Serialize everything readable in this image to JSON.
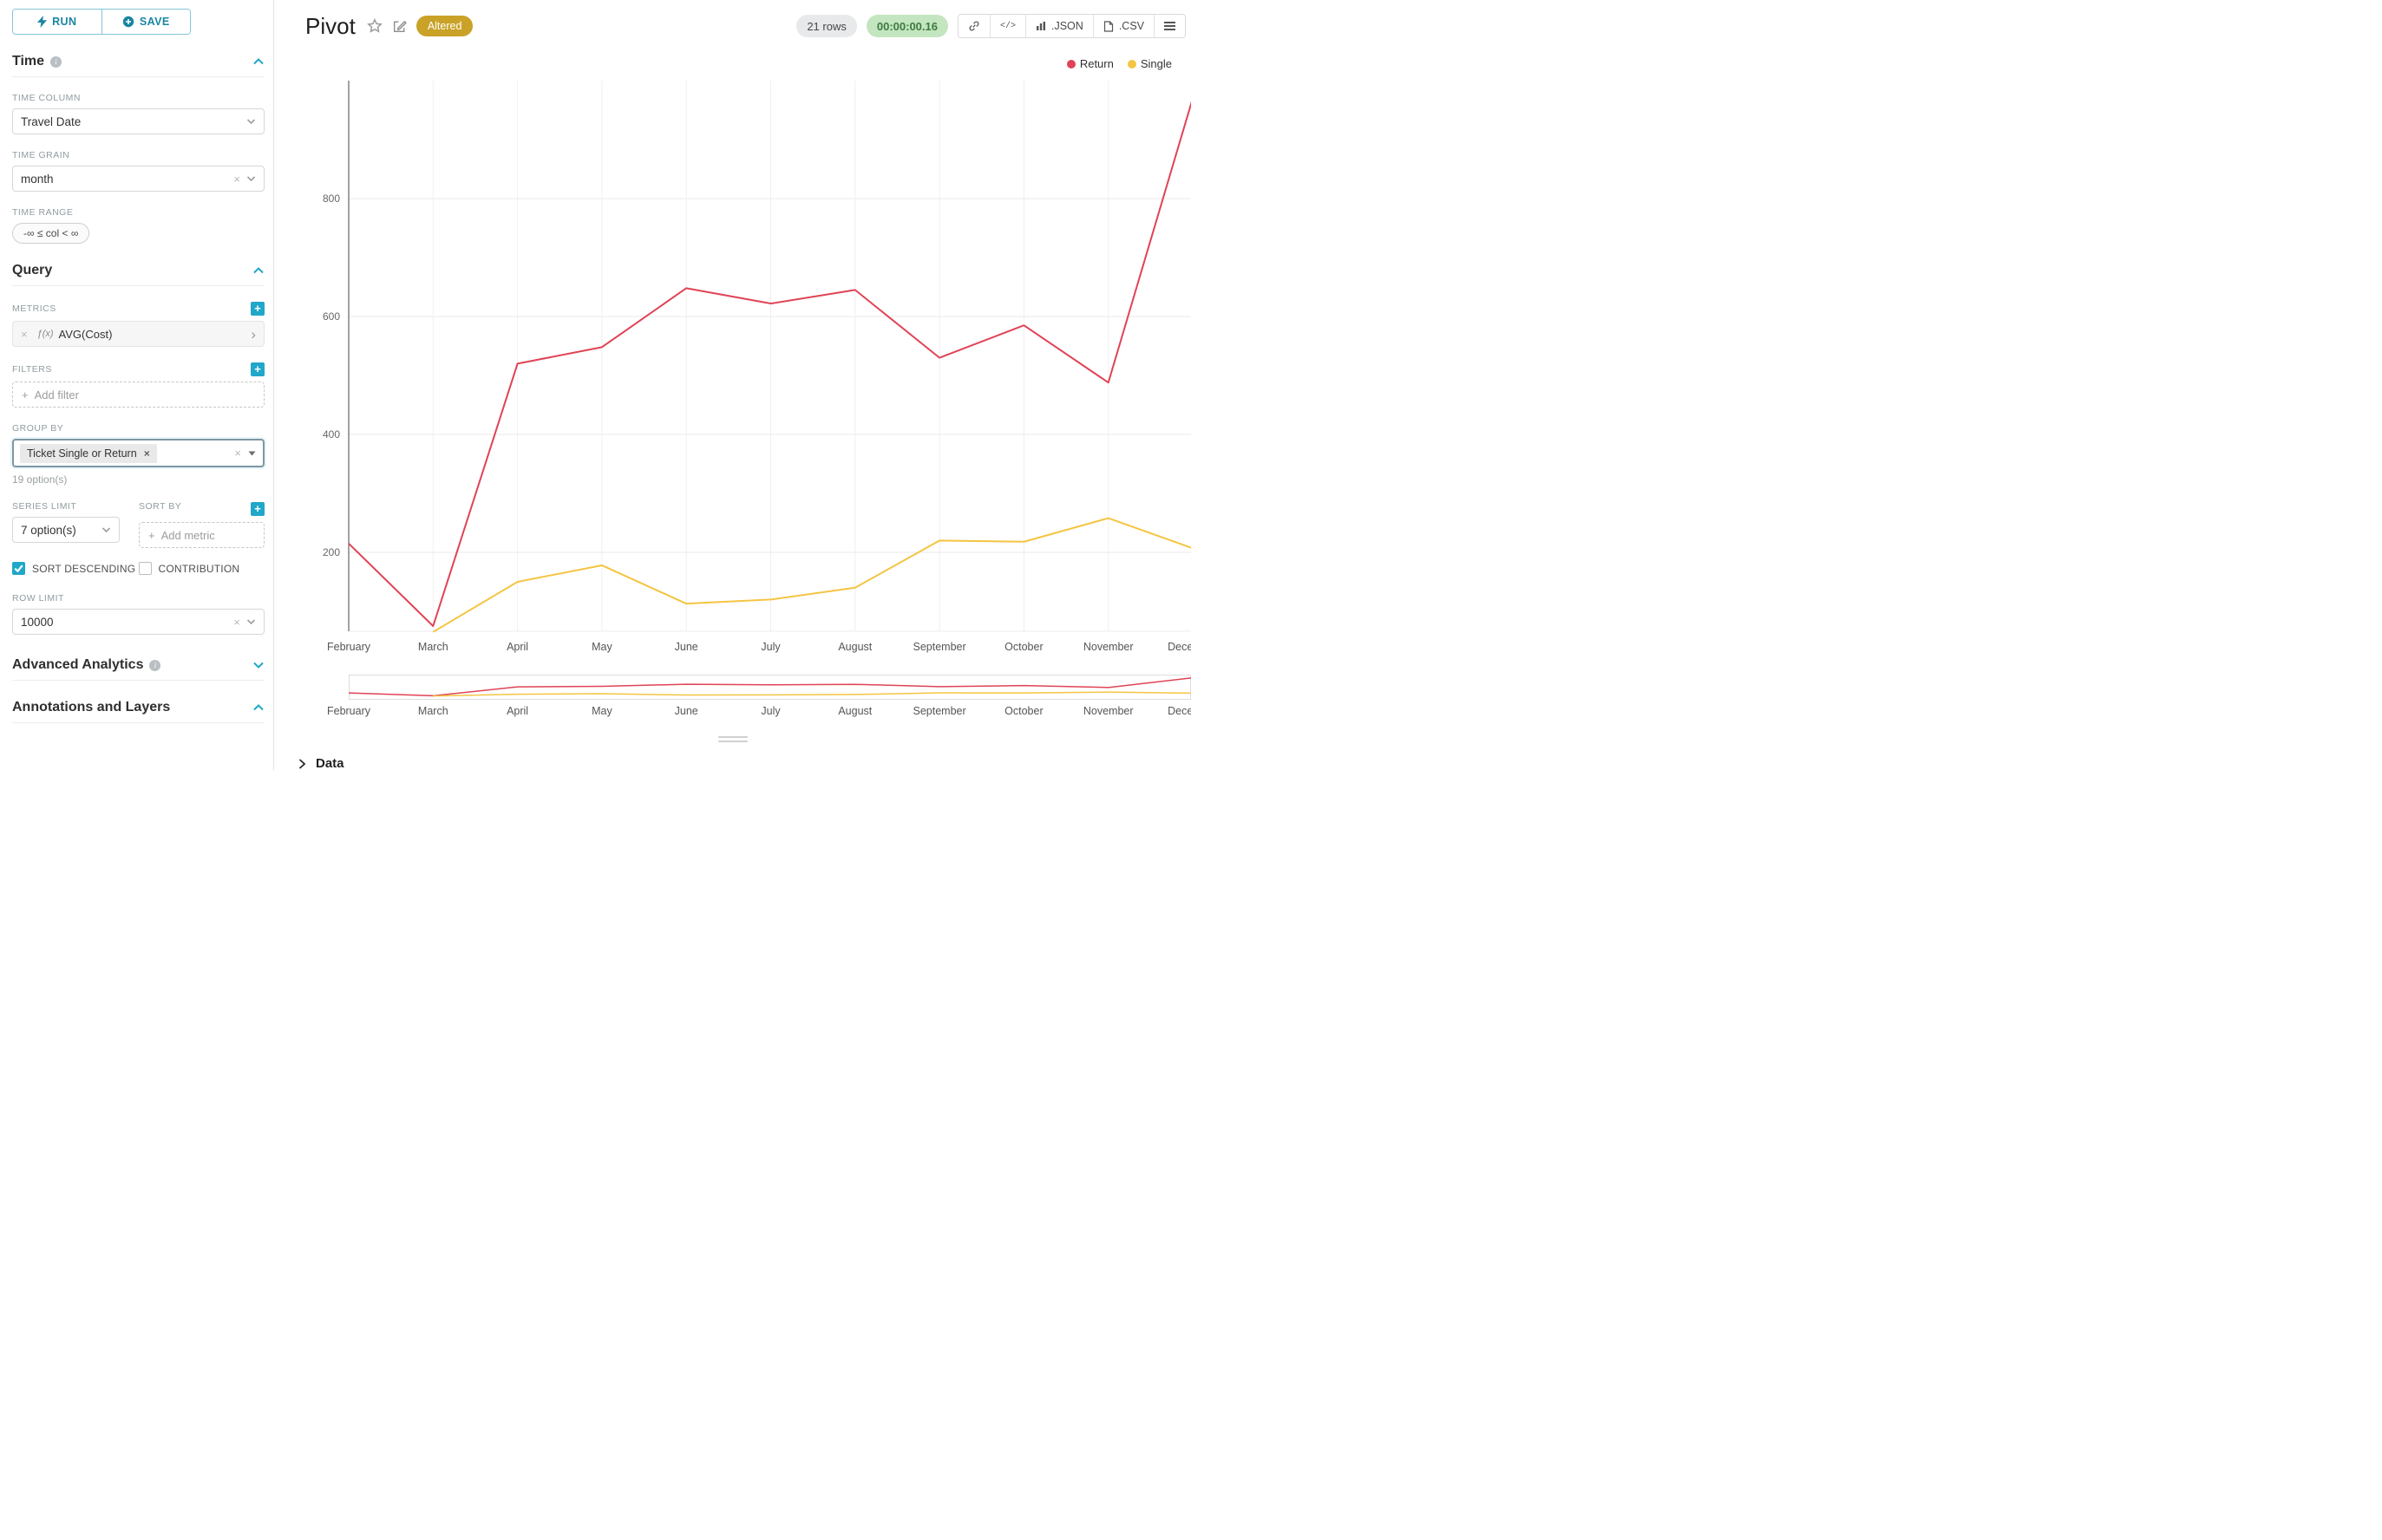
{
  "colors": {
    "accent": "#20a7c9",
    "accent_dark": "#1a85a0",
    "altered_bg": "#c9a227",
    "rows_pill_bg": "#e7e9eb",
    "timer_pill_bg": "#c3e5c0",
    "timer_pill_text": "#3e7a3e"
  },
  "sidebar": {
    "run_label": "RUN",
    "save_label": "SAVE",
    "time": {
      "title": "Time",
      "column_label": "TIME COLUMN",
      "column_value": "Travel Date",
      "grain_label": "TIME GRAIN",
      "grain_value": "month",
      "range_label": "TIME RANGE",
      "range_value": "-∞ ≤ col < ∞"
    },
    "query": {
      "title": "Query",
      "metrics_label": "METRICS",
      "metric_fx": "ƒ(x)",
      "metric_value": "AVG(Cost)",
      "filters_label": "FILTERS",
      "add_filter_placeholder": "Add filter",
      "group_by_label": "GROUP BY",
      "group_by_value": "Ticket Single or Return",
      "group_by_options_hint": "19 option(s)",
      "series_limit_label": "SERIES LIMIT",
      "series_limit_value": "7 option(s)",
      "sort_by_label": "SORT BY",
      "add_metric_placeholder": "Add metric",
      "sort_descending_label": "SORT DESCENDING",
      "contribution_label": "CONTRIBUTION",
      "row_limit_label": "ROW LIMIT",
      "row_limit_value": "10000"
    },
    "advanced_analytics_title": "Advanced Analytics",
    "annotations_title": "Annotations and Layers"
  },
  "header": {
    "title": "Pivot",
    "altered_badge": "Altered",
    "rows_badge": "21 rows",
    "timer_badge": "00:00:00.16",
    "code_label": "</>",
    "json_label": ".JSON",
    "csv_label": ".CSV"
  },
  "chart_data": {
    "type": "line",
    "title": "Pivot",
    "categories": [
      "February",
      "March",
      "April",
      "May",
      "June",
      "July",
      "August",
      "September",
      "October",
      "November",
      "December"
    ],
    "series": [
      {
        "name": "Return",
        "color": "#e04355",
        "values": [
          215,
          75,
          520,
          548,
          648,
          622,
          645,
          530,
          585,
          488,
          970
        ]
      },
      {
        "name": "Single",
        "color": "#f4c542",
        "values": [
          null,
          65,
          150,
          178,
          113,
          120,
          140,
          220,
          218,
          258,
          207
        ]
      }
    ],
    "ylim": [
      50,
      1000
    ],
    "yticks": [
      200,
      400,
      600,
      800
    ],
    "grid": true,
    "legend_position": "top-right",
    "has_range_selector": true
  },
  "footer": {
    "data_label": "Data"
  }
}
